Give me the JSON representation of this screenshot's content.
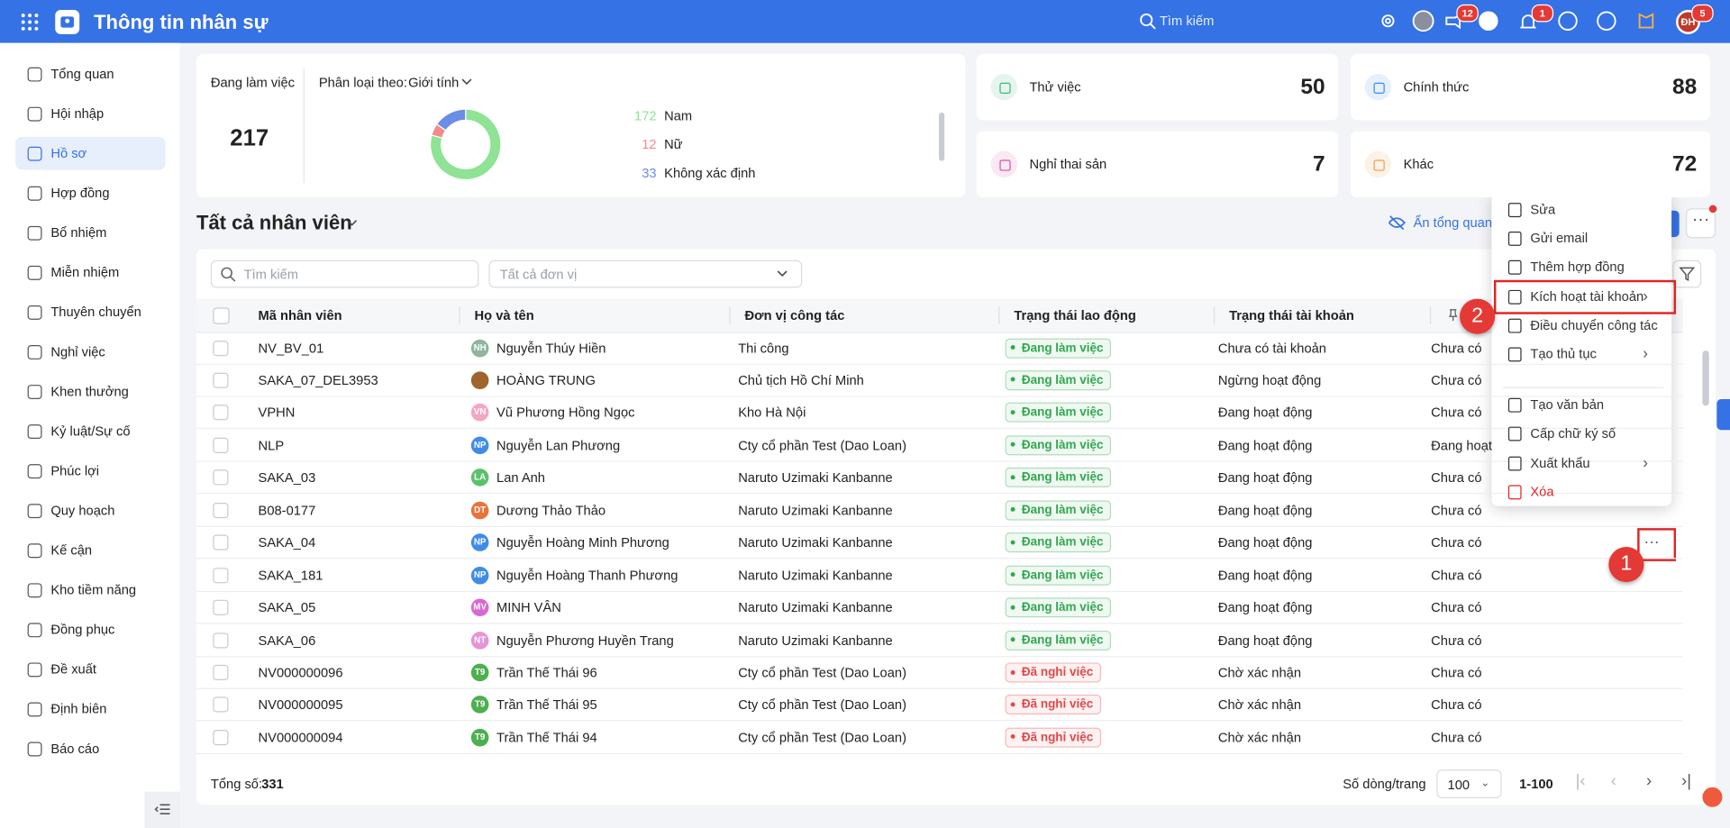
{
  "header": {
    "app_title": "Thông tin nhân sự",
    "search_placeholder": "Tìm kiếm",
    "announcement_badge": 12,
    "notification_badge": 1,
    "avatar_initials": "ĐH",
    "avatar_badge": 5
  },
  "sidebar": {
    "active": 2,
    "items": [
      "Tổng quan",
      "Hội nhập",
      "Hồ sơ",
      "Hợp đồng",
      "Bổ nhiệm",
      "Miễn nhiệm",
      "Thuyên chuyển",
      "Nghỉ việc",
      "Khen thưởng",
      "Kỷ luật/Sự cố",
      "Phúc lợi",
      "Quy hoạch",
      "Kế cận",
      "Kho tiềm năng",
      "Đồng phục",
      "Đề xuất",
      "Định biên",
      "Báo cáo"
    ]
  },
  "summary": {
    "working_label": "Đang làm việc",
    "working_count": 217,
    "classify_label": "Phân loại theo:",
    "classify_value": "Giới tính",
    "gender": [
      {
        "name": "Nam",
        "value": 172,
        "color": "#8ee394"
      },
      {
        "name": "Nữ",
        "value": 12,
        "color": "#f38b8b"
      },
      {
        "name": "Không xác định",
        "value": 33,
        "color": "#6a8de6"
      }
    ],
    "cards": [
      {
        "label": "Thử việc",
        "value": 50,
        "color": "#3fb57a"
      },
      {
        "label": "Chính thức",
        "value": 88,
        "color": "#3d8ee8"
      },
      {
        "label": "Nghỉ thai sản",
        "value": 7,
        "color": "#d94fa8"
      },
      {
        "label": "Khác",
        "value": 72,
        "color": "#f0a04b"
      }
    ]
  },
  "list": {
    "title": "Tất cả nhân viên",
    "hide_overview": "Ẩn tổng quan",
    "search_placeholder": "Tìm kiếm",
    "unit_placeholder": "Tất cả đơn vị",
    "columns": [
      "Mã nhân viên",
      "Họ và tên",
      "Đơn vị công tác",
      "Trạng thái lao động",
      "Trạng thái tài khoản"
    ],
    "rows": [
      {
        "code": "NV_BV_01",
        "initials": "NH",
        "avatar_color": "#8fb59c",
        "name": "Nguyễn Thúy Hiền",
        "unit": "Thi công",
        "status": "Đang làm việc",
        "status_color": "#2fa84f",
        "account": "Chưa có tài khoản",
        "signature": "Chưa có"
      },
      {
        "code": "SAKA_07_DEL3953",
        "initials": null,
        "avatar_color": "#a0652a",
        "name": "HOÀNG TRUNG",
        "unit": "Chủ tịch Hồ Chí Minh",
        "status": "Đang làm việc",
        "status_color": "#2fa84f",
        "account": "Ngừng hoạt động",
        "signature": "Chưa có"
      },
      {
        "code": "VPHN",
        "initials": "VN",
        "avatar_color": "#f4a6c4",
        "name": "Vũ Phương Hồng Ngọc",
        "unit": "Kho Hà Nội",
        "status": "Đang làm việc",
        "status_color": "#2fa84f",
        "account": "Đang hoạt động",
        "signature": "Chưa có"
      },
      {
        "code": "NLP",
        "initials": "NP",
        "avatar_color": "#3f8ce8",
        "name": "Nguyễn Lan Phương",
        "unit": "Cty cổ phần Test (Dao Loan)",
        "status": "Đang làm việc",
        "status_color": "#2fa84f",
        "account": "Đang hoạt động",
        "signature": "Đang hoạt động"
      },
      {
        "code": "SAKA_03",
        "initials": "LA",
        "avatar_color": "#5cc16b",
        "name": "Lan Anh",
        "unit": "Naruto Uzimaki Kanbanne",
        "status": "Đang làm việc",
        "status_color": "#2fa84f",
        "account": "Đang hoạt động",
        "signature": "Chưa có"
      },
      {
        "code": "B08-0177",
        "initials": "DT",
        "avatar_color": "#e8743b",
        "name": "Dương Thảo Thảo",
        "unit": "Naruto Uzimaki Kanbanne",
        "status": "Đang làm việc",
        "status_color": "#2fa84f",
        "account": "Đang hoạt động",
        "signature": "Chưa có"
      },
      {
        "code": "SAKA_04",
        "initials": "NP",
        "avatar_color": "#3f8ce8",
        "name": "Nguyễn Hoàng Minh Phương",
        "unit": "Naruto Uzimaki Kanbanne",
        "status": "Đang làm việc",
        "status_color": "#2fa84f",
        "account": "Đang hoạt động",
        "signature": "Chưa có"
      },
      {
        "code": "SAKA_181",
        "initials": "NP",
        "avatar_color": "#3f8ce8",
        "name": "Nguyễn Hoàng Thanh Phương",
        "unit": "Naruto Uzimaki Kanbanne",
        "status": "Đang làm việc",
        "status_color": "#2fa84f",
        "account": "Đang hoạt động",
        "signature": "Chưa có"
      },
      {
        "code": "SAKA_05",
        "initials": "MV",
        "avatar_color": "#d868cf",
        "name": "MINH VÂN",
        "unit": "Naruto Uzimaki Kanbanne",
        "status": "Đang làm việc",
        "status_color": "#2fa84f",
        "account": "Đang hoạt động",
        "signature": "Chưa có"
      },
      {
        "code": "SAKA_06",
        "initials": "NT",
        "avatar_color": "#e494d7",
        "name": "Nguyễn Phương Huyền Trang",
        "unit": "Naruto Uzimaki Kanbanne",
        "status": "Đang làm việc",
        "status_color": "#2fa84f",
        "account": "Đang hoạt động",
        "signature": "Chưa có"
      },
      {
        "code": "NV000000096",
        "initials": "T9",
        "avatar_color": "#4caf50",
        "name": "Trần Thế Thái 96",
        "unit": "Cty cổ phần Test (Dao Loan)",
        "status": "Đã nghỉ việc",
        "status_color": "#e04848",
        "account": "Chờ xác nhận",
        "signature": "Chưa có"
      },
      {
        "code": "NV000000095",
        "initials": "T9",
        "avatar_color": "#4caf50",
        "name": "Trần Thế Thái 95",
        "unit": "Cty cổ phần Test (Dao Loan)",
        "status": "Đã nghỉ việc",
        "status_color": "#e04848",
        "account": "Chờ xác nhận",
        "signature": "Chưa có"
      },
      {
        "code": "NV000000094",
        "initials": "T9",
        "avatar_color": "#4caf50",
        "name": "Trần Thế Thái 94",
        "unit": "Cty cổ phần Test (Dao Loan)",
        "status": "Đã nghỉ việc",
        "status_color": "#e04848",
        "account": "Chờ xác nhận",
        "signature": "Chưa có"
      }
    ],
    "total_label": "Tổng số:",
    "total": 331,
    "page_size_label": "Số dòng/trang",
    "page_size": 100,
    "range": "1-100"
  },
  "context_menu": {
    "groups": [
      [
        {
          "label": "Sửa"
        },
        {
          "label": "Gửi email"
        },
        {
          "label": "Thêm hợp đồng"
        },
        {
          "label": "Kích hoạt tài khoản",
          "submenu": true
        },
        {
          "label": "Điều chuyển công tác"
        },
        {
          "label": "Tạo thủ tục",
          "submenu": true
        }
      ],
      [
        {
          "label": "Tạo văn bản"
        },
        {
          "label": "Cấp chữ ký số"
        },
        {
          "label": "Xuất khẩu",
          "submenu": true
        },
        {
          "label": "Xóa",
          "danger": true
        }
      ]
    ]
  },
  "callouts": [
    1,
    2
  ]
}
